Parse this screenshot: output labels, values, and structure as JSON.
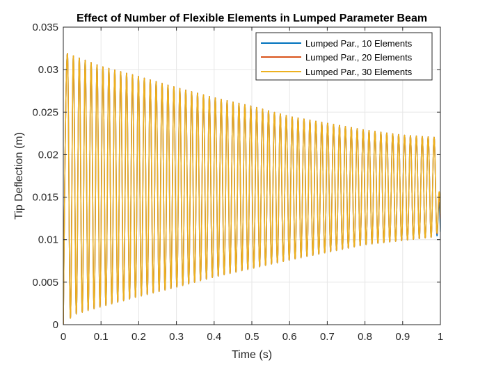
{
  "chart_data": {
    "type": "line",
    "title": "Effect of Number of Flexible Elements in Lumped Parameter Beam",
    "xlabel": "Time (s)",
    "ylabel": "Tip Deflection (m)",
    "xlim": [
      0,
      1
    ],
    "ylim": [
      0,
      0.035
    ],
    "x_ticks": [
      0,
      0.1,
      0.2,
      0.3,
      0.4,
      0.5,
      0.6,
      0.7,
      0.8,
      0.9,
      1
    ],
    "x_tick_labels": [
      "0",
      "0.1",
      "0.2",
      "0.3",
      "0.4",
      "0.5",
      "0.6",
      "0.7",
      "0.8",
      "0.9",
      "1"
    ],
    "y_ticks": [
      0,
      0.005,
      0.01,
      0.015,
      0.02,
      0.025,
      0.03,
      0.035
    ],
    "y_tick_labels": [
      "0",
      "0.005",
      "0.01",
      "0.015",
      "0.02",
      "0.025",
      "0.03",
      "0.035"
    ],
    "grid": true,
    "legend_position": "top-right",
    "oscillation": {
      "peak_times": [
        0.011,
        0.999
      ],
      "cycles_shown": 63,
      "upper_envelope_points": [
        [
          0.011,
          0.0319
        ],
        [
          0.1,
          0.0304
        ],
        [
          0.2,
          0.0292
        ],
        [
          0.3,
          0.0279
        ],
        [
          0.4,
          0.0267
        ],
        [
          0.5,
          0.0257
        ],
        [
          0.6,
          0.0245
        ],
        [
          0.7,
          0.0237
        ],
        [
          0.8,
          0.0229
        ],
        [
          0.9,
          0.0223
        ],
        [
          1.0,
          0.022
        ]
      ],
      "lower_envelope_points": [
        [
          0.0,
          0.0
        ],
        [
          0.03,
          0.0012
        ],
        [
          0.1,
          0.0021
        ],
        [
          0.2,
          0.0033
        ],
        [
          0.3,
          0.0044
        ],
        [
          0.4,
          0.0056
        ],
        [
          0.5,
          0.0066
        ],
        [
          0.6,
          0.0076
        ],
        [
          0.7,
          0.0085
        ],
        [
          0.8,
          0.0094
        ],
        [
          0.9,
          0.0099
        ],
        [
          1.0,
          0.0104
        ]
      ]
    },
    "series": [
      {
        "name": "Lumped Par., 10 Elements",
        "color": "#0072BD",
        "end_value": 0.0109
      },
      {
        "name": "Lumped Par., 20 Elements",
        "color": "#D95319",
        "end_value": 0.0124
      },
      {
        "name": "Lumped Par., 30 Elements",
        "color": "#EDB120",
        "end_value": 0.013
      }
    ]
  }
}
